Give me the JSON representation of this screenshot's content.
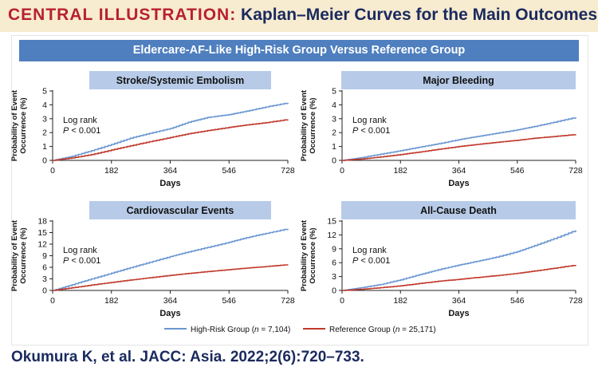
{
  "header": {
    "label": "CENTRAL ILLUSTRATION:",
    "title": "Kaplan–Meier Curves for the Main Outcomes"
  },
  "banner": "Eldercare-AF-Like High-Risk Group Versus Reference Group",
  "colors": {
    "high_risk": "#6a96d2",
    "reference": "#c0392b",
    "banner": "#4f7fbf",
    "panel_title_bg": "#b7cbe8",
    "header_bg": "#f7ebd0",
    "header_red": "#b8202f",
    "navy": "#1a2a5e"
  },
  "legend": {
    "high_risk": {
      "label": "High-Risk Group (",
      "n": "n",
      "value": " = 7,104)"
    },
    "reference": {
      "label": "Reference Group (",
      "n": "n",
      "value": " = 25,171)"
    }
  },
  "citation": "Okumura K, et al. JACC: Asia. 2022;2(6):720–733.",
  "chart_data": [
    {
      "type": "line",
      "title": "Stroke/Systemic Embolism",
      "xlabel": "Days",
      "ylabel_line1": "Probability of Event",
      "ylabel_line2": "Occurrence (%)",
      "xlim": [
        0,
        728
      ],
      "ylim": [
        0,
        5
      ],
      "x_ticks": [
        0,
        182,
        364,
        546,
        728
      ],
      "y_ticks": [
        0,
        1,
        2,
        3,
        4,
        5
      ],
      "annotation": {
        "line1": "Log rank",
        "p": "P",
        "rest": " < 0.001"
      },
      "x": [
        0,
        60,
        120,
        182,
        240,
        300,
        364,
        420,
        480,
        546,
        600,
        660,
        728
      ],
      "series": [
        {
          "name": "High-Risk Group",
          "values": [
            0,
            0.3,
            0.7,
            1.15,
            1.6,
            1.95,
            2.3,
            2.75,
            3.1,
            3.3,
            3.55,
            3.85,
            4.15
          ]
        },
        {
          "name": "Reference Group",
          "values": [
            0,
            0.18,
            0.42,
            0.75,
            1.05,
            1.35,
            1.65,
            1.92,
            2.15,
            2.38,
            2.55,
            2.72,
            2.95
          ]
        }
      ]
    },
    {
      "type": "line",
      "title": "Major Bleeding",
      "xlabel": "Days",
      "ylabel_line1": "Probability of Event",
      "ylabel_line2": "Occurrence (%)",
      "xlim": [
        0,
        728
      ],
      "ylim": [
        0,
        5
      ],
      "x_ticks": [
        0,
        182,
        364,
        546,
        728
      ],
      "y_ticks": [
        0,
        1,
        2,
        3,
        4,
        5
      ],
      "annotation": {
        "line1": "Log rank",
        "p": "P",
        "rest": " < 0.001"
      },
      "x": [
        0,
        60,
        120,
        182,
        240,
        300,
        364,
        420,
        480,
        546,
        600,
        660,
        728
      ],
      "series": [
        {
          "name": "High-Risk Group",
          "values": [
            0,
            0.2,
            0.45,
            0.7,
            0.95,
            1.2,
            1.5,
            1.72,
            1.95,
            2.2,
            2.45,
            2.75,
            3.1
          ]
        },
        {
          "name": "Reference Group",
          "values": [
            0,
            0.1,
            0.25,
            0.42,
            0.6,
            0.8,
            1.0,
            1.15,
            1.3,
            1.45,
            1.6,
            1.72,
            1.87
          ]
        }
      ]
    },
    {
      "type": "line",
      "title": "Cardiovascular Events",
      "xlabel": "Days",
      "ylabel_line1": "Probability of Event",
      "ylabel_line2": "Occurrence (%)",
      "xlim": [
        0,
        728
      ],
      "ylim": [
        0,
        18
      ],
      "x_ticks": [
        0,
        182,
        364,
        546,
        728
      ],
      "y_ticks": [
        0,
        3,
        6,
        9,
        12,
        15,
        18
      ],
      "annotation": {
        "line1": "Log rank",
        "p": "P",
        "rest": " < 0.001"
      },
      "x": [
        0,
        60,
        120,
        182,
        240,
        300,
        364,
        420,
        480,
        546,
        600,
        660,
        728
      ],
      "series": [
        {
          "name": "High-Risk Group",
          "values": [
            0,
            1.5,
            3.0,
            4.5,
            5.9,
            7.3,
            8.8,
            10.0,
            11.2,
            12.5,
            13.7,
            14.8,
            16.0
          ]
        },
        {
          "name": "Reference Group",
          "values": [
            0,
            0.7,
            1.4,
            2.1,
            2.7,
            3.3,
            3.9,
            4.4,
            4.9,
            5.4,
            5.8,
            6.2,
            6.7
          ]
        }
      ]
    },
    {
      "type": "line",
      "title": "All-Cause Death",
      "xlabel": "Days",
      "ylabel_line1": "Probability of Event",
      "ylabel_line2": "Occurrence (%)",
      "xlim": [
        0,
        728
      ],
      "ylim": [
        0,
        15
      ],
      "x_ticks": [
        0,
        182,
        364,
        546,
        728
      ],
      "y_ticks": [
        0,
        3,
        6,
        9,
        12,
        15
      ],
      "annotation": {
        "line1": "Log rank",
        "p": "P",
        "rest": " < 0.001"
      },
      "x": [
        0,
        60,
        120,
        182,
        240,
        300,
        364,
        420,
        480,
        546,
        600,
        660,
        728
      ],
      "series": [
        {
          "name": "High-Risk Group",
          "values": [
            0,
            0.6,
            1.3,
            2.3,
            3.4,
            4.5,
            5.5,
            6.3,
            7.2,
            8.4,
            9.7,
            11.2,
            13.0
          ]
        },
        {
          "name": "Reference Group",
          "values": [
            0,
            0.25,
            0.6,
            1.0,
            1.5,
            2.0,
            2.4,
            2.8,
            3.2,
            3.7,
            4.2,
            4.8,
            5.5
          ]
        }
      ]
    }
  ]
}
